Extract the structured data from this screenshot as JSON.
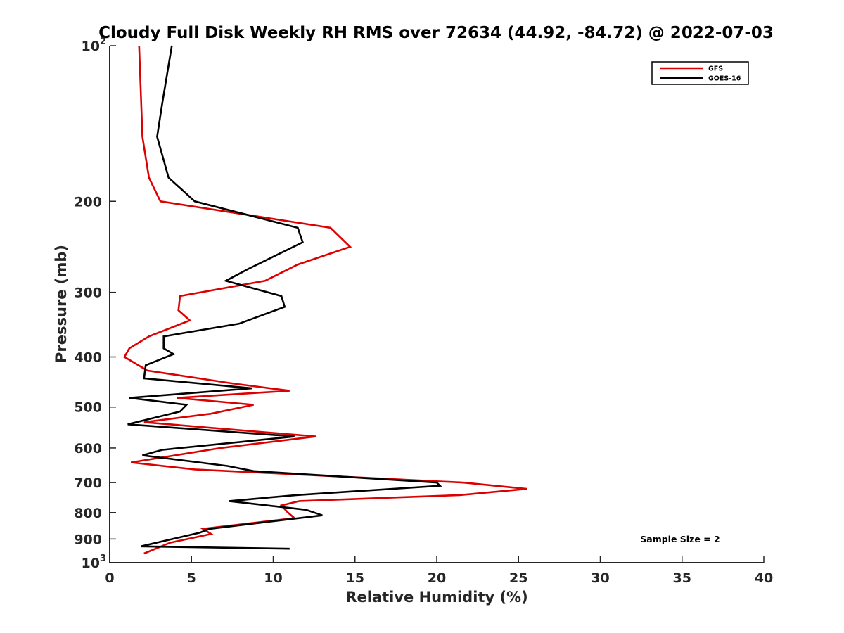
{
  "chart_data": {
    "type": "line",
    "title": "Cloudy Full Disk Weekly RH RMS over 72634 (44.92, -84.72) @ 2022-07-03",
    "xlabel": "Relative Humidity (%)",
    "ylabel": "Pressure (mb)",
    "xlim": [
      0,
      40
    ],
    "ylim": [
      100,
      1000
    ],
    "y_scale": "log",
    "y_reversed": true,
    "x_ticks": [
      0,
      5,
      10,
      15,
      20,
      25,
      30,
      35,
      40
    ],
    "y_ticks": [
      {
        "value": 100,
        "base": "10",
        "exp": "2"
      },
      {
        "value": 200,
        "label": "200"
      },
      {
        "value": 300,
        "label": "300"
      },
      {
        "value": 400,
        "label": "400"
      },
      {
        "value": 500,
        "label": "500"
      },
      {
        "value": 600,
        "label": "600"
      },
      {
        "value": 700,
        "label": "700"
      },
      {
        "value": 800,
        "label": "800"
      },
      {
        "value": 900,
        "label": "900"
      },
      {
        "value": 1000,
        "base": "10",
        "exp": "3"
      }
    ],
    "legend_position": "top-right",
    "annotation": "Sample Size = 2",
    "series": [
      {
        "name": "GFS",
        "color": "#dd0000",
        "points": [
          [
            1.8,
            100
          ],
          [
            2.0,
            150
          ],
          [
            2.4,
            180
          ],
          [
            3.1,
            200
          ],
          [
            13.5,
            225
          ],
          [
            14.7,
            245
          ],
          [
            11.5,
            265
          ],
          [
            9.5,
            285
          ],
          [
            4.3,
            305
          ],
          [
            4.2,
            325
          ],
          [
            4.9,
            340
          ],
          [
            2.4,
            365
          ],
          [
            1.2,
            385
          ],
          [
            0.9,
            400
          ],
          [
            2.3,
            425
          ],
          [
            7.5,
            450
          ],
          [
            11.0,
            465
          ],
          [
            4.1,
            480
          ],
          [
            8.8,
            495
          ],
          [
            6.2,
            515
          ],
          [
            2.1,
            535
          ],
          [
            12.6,
            570
          ],
          [
            6.8,
            600
          ],
          [
            1.3,
            640
          ],
          [
            5.2,
            660
          ],
          [
            21.6,
            700
          ],
          [
            25.5,
            720
          ],
          [
            21.4,
            740
          ],
          [
            11.6,
            760
          ],
          [
            10.5,
            775
          ],
          [
            10.9,
            800
          ],
          [
            11.3,
            820
          ],
          [
            5.7,
            860
          ],
          [
            6.2,
            880
          ],
          [
            3.7,
            915
          ],
          [
            2.1,
            960
          ]
        ]
      },
      {
        "name": "GOES-16",
        "color": "#000000",
        "points": [
          [
            3.8,
            100
          ],
          [
            3.2,
            130
          ],
          [
            2.9,
            150
          ],
          [
            3.6,
            180
          ],
          [
            5.2,
            200
          ],
          [
            11.5,
            225
          ],
          [
            11.8,
            240
          ],
          [
            8.5,
            270
          ],
          [
            7.1,
            285
          ],
          [
            10.5,
            305
          ],
          [
            10.7,
            320
          ],
          [
            7.9,
            345
          ],
          [
            3.3,
            365
          ],
          [
            3.3,
            385
          ],
          [
            3.9,
            395
          ],
          [
            2.2,
            415
          ],
          [
            2.1,
            440
          ],
          [
            8.7,
            460
          ],
          [
            1.2,
            480
          ],
          [
            4.7,
            495
          ],
          [
            4.3,
            510
          ],
          [
            1.1,
            540
          ],
          [
            11.3,
            570
          ],
          [
            3.2,
            605
          ],
          [
            2.0,
            620
          ],
          [
            7.2,
            650
          ],
          [
            8.8,
            665
          ],
          [
            20.0,
            700
          ],
          [
            20.2,
            710
          ],
          [
            11.4,
            740
          ],
          [
            7.3,
            760
          ],
          [
            12.0,
            790
          ],
          [
            13.0,
            810
          ],
          [
            6.1,
            860
          ],
          [
            5.5,
            875
          ],
          [
            1.9,
            930
          ],
          [
            11.0,
            940
          ]
        ]
      }
    ]
  }
}
